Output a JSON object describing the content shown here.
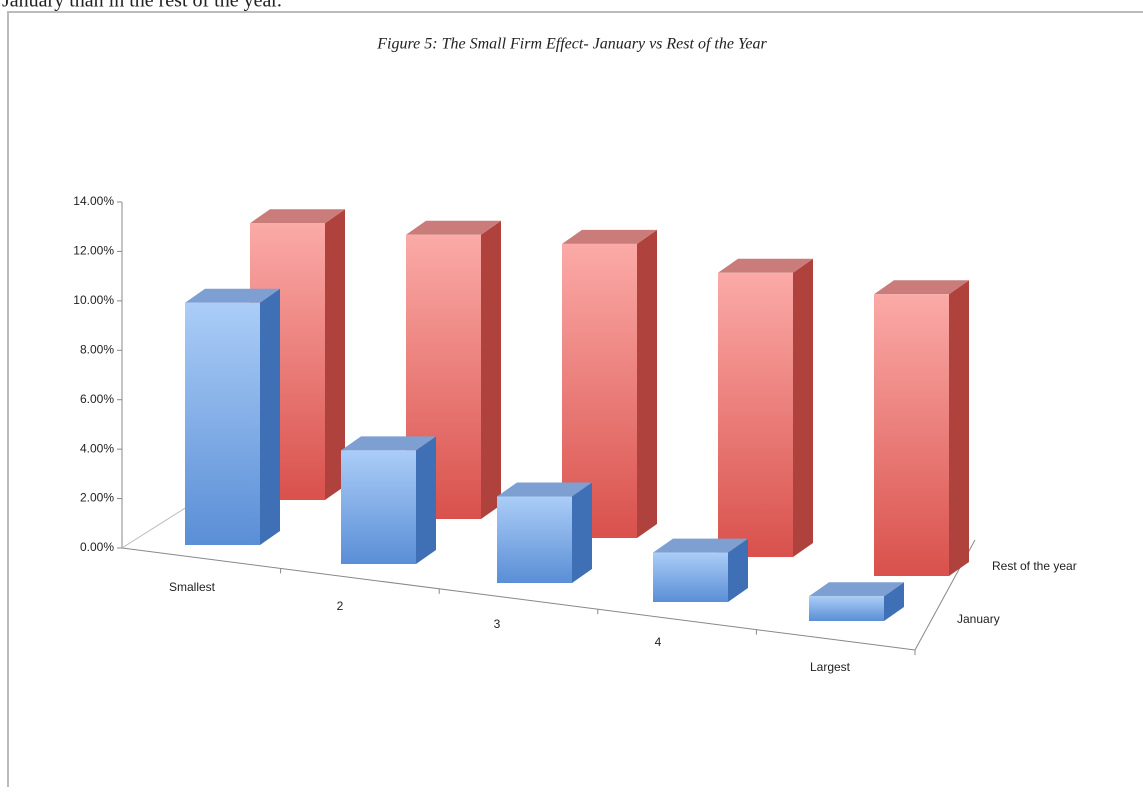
{
  "context_text": "January than in the rest of the year.",
  "chart_data": {
    "type": "bar3d",
    "title": "Figure 5: The Small Firm Effect- January vs Rest of the Year",
    "categories": [
      "Smallest",
      "2",
      "3",
      "4",
      "Largest"
    ],
    "series": [
      {
        "name": "January",
        "color": "#5b8fd6",
        "values": [
          9.8,
          4.6,
          3.5,
          2.0,
          1.0
        ]
      },
      {
        "name": "Rest of the year",
        "color": "#dd5a55",
        "values": [
          11.2,
          11.5,
          11.9,
          11.5,
          11.4
        ]
      }
    ],
    "ylim": [
      0,
      14
    ],
    "yticks": [
      {
        "value": 0,
        "label": "0.00%"
      },
      {
        "value": 2,
        "label": "2.00%"
      },
      {
        "value": 4,
        "label": "4.00%"
      },
      {
        "value": 6,
        "label": "6.00%"
      },
      {
        "value": 8,
        "label": "8.00%"
      },
      {
        "value": 10,
        "label": "10.00%"
      },
      {
        "value": 12,
        "label": "12.00%"
      },
      {
        "value": 14,
        "label": "14.00%"
      }
    ]
  }
}
